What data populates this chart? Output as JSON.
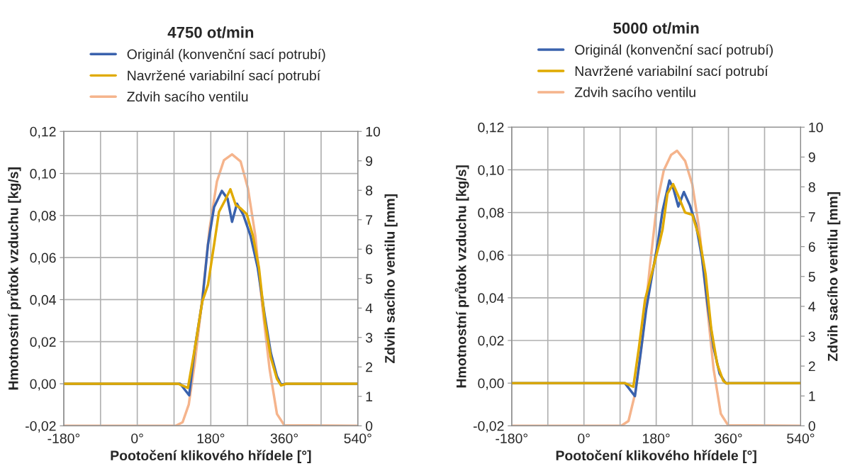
{
  "chart_data": [
    {
      "type": "line",
      "title": "4750 ot/min",
      "xlabel": "Pootočení klikového hřídele [°]",
      "ylabel": "Hmotnostní průtok vzduchu [kg/s]",
      "y2label": "Zdvih sacího ventilu [mm]",
      "xlim": [
        -180,
        540
      ],
      "xticks": [
        {
          "value": -180,
          "label": "-180°"
        },
        {
          "value": -90,
          "label": null
        },
        {
          "value": 0,
          "label": "0°"
        },
        {
          "value": 90,
          "label": null
        },
        {
          "value": 180,
          "label": "180°"
        },
        {
          "value": 270,
          "label": null
        },
        {
          "value": 360,
          "label": "360°"
        },
        {
          "value": 450,
          "label": null
        },
        {
          "value": 540,
          "label": "540°"
        }
      ],
      "ylim": [
        -0.02,
        0.12
      ],
      "yticks": [
        {
          "value": -0.02,
          "label": "-0,02"
        },
        {
          "value": 0,
          "label": "0,00"
        },
        {
          "value": 0.02,
          "label": "0,02"
        },
        {
          "value": 0.04,
          "label": "0,04"
        },
        {
          "value": 0.06,
          "label": "0,06"
        },
        {
          "value": 0.08,
          "label": "0,08"
        },
        {
          "value": 0.1,
          "label": "0,10"
        },
        {
          "value": 0.12,
          "label": "0,12"
        }
      ],
      "y2lim": [
        0,
        10
      ],
      "y2ticks": [
        0,
        1,
        2,
        3,
        4,
        5,
        6,
        7,
        8,
        9,
        10
      ],
      "grid": true,
      "legend": "top",
      "series": [
        {
          "name": "Originál (konvenční sací potrubí)",
          "color": "#3a62ad",
          "x": [
            -180,
            105,
            127,
            141,
            159,
            173,
            188,
            207,
            221,
            232,
            244,
            259,
            277,
            295,
            312,
            327,
            342,
            352,
            365,
            540
          ],
          "values": [
            0,
            0,
            -0.0055,
            0.017,
            0.039,
            0.066,
            0.084,
            0.0917,
            0.088,
            0.077,
            0.0856,
            0.0806,
            0.0705,
            0.055,
            0.0325,
            0.0146,
            0.0035,
            -0.0004,
            0,
            0
          ]
        },
        {
          "name": "Navržené variabilní sací potrubí",
          "color": "#e0aa00",
          "x": [
            -180,
            100,
            124,
            141,
            159,
            173,
            188,
            200,
            215,
            228,
            241,
            253,
            268,
            283,
            298,
            312,
            327,
            342,
            352,
            365,
            540
          ],
          "values": [
            0,
            0,
            -0.002,
            0.017,
            0.039,
            0.047,
            0.066,
            0.0817,
            0.0873,
            0.0925,
            0.085,
            0.0834,
            0.0806,
            0.0705,
            0.055,
            0.0303,
            0.0124,
            0.0023,
            -0.0008,
            0,
            0
          ]
        },
        {
          "name": "Zdvih sacího ventilu",
          "color": "#f5b48c",
          "axis": "y2",
          "x": [
            -180,
            94,
            111,
            126,
            141,
            159,
            177,
            195,
            212,
            232,
            253,
            271,
            289,
            306,
            324,
            342,
            360,
            540
          ],
          "values": [
            0,
            0,
            0.12,
            0.72,
            2.15,
            4.3,
            6.7,
            8.3,
            9.02,
            9.22,
            8.98,
            8.06,
            6.46,
            4.07,
            1.92,
            0.4,
            0.02,
            0
          ]
        }
      ]
    },
    {
      "type": "line",
      "title": "5000 ot/min",
      "xlabel": "Pootočení klikového hřídele [°]",
      "ylabel": "Hmotnostní průtok vzduchu [kg/s]",
      "y2label": "Zdvih sacího ventilu [mm]",
      "xlim": [
        -180,
        540
      ],
      "xticks": [
        {
          "value": -180,
          "label": "-180°"
        },
        {
          "value": -90,
          "label": null
        },
        {
          "value": 0,
          "label": "0°"
        },
        {
          "value": 90,
          "label": null
        },
        {
          "value": 180,
          "label": "180°"
        },
        {
          "value": 270,
          "label": null
        },
        {
          "value": 360,
          "label": "360°"
        },
        {
          "value": 450,
          "label": null
        },
        {
          "value": 540,
          "label": "540°"
        }
      ],
      "ylim": [
        -0.02,
        0.12
      ],
      "yticks": [
        {
          "value": -0.02,
          "label": "-0,02"
        },
        {
          "value": 0,
          "label": "0,00"
        },
        {
          "value": 0.02,
          "label": "0,02"
        },
        {
          "value": 0.04,
          "label": "0,04"
        },
        {
          "value": 0.06,
          "label": "0,06"
        },
        {
          "value": 0.08,
          "label": "0,08"
        },
        {
          "value": 0.1,
          "label": "0,10"
        },
        {
          "value": 0.12,
          "label": "0,12"
        }
      ],
      "y2lim": [
        0,
        10
      ],
      "y2ticks": [
        0,
        1,
        2,
        3,
        4,
        5,
        6,
        7,
        8,
        9,
        10
      ],
      "grid": true,
      "legend": "top",
      "series": [
        {
          "name": "Originál (konvenční sací potrubí)",
          "color": "#3a62ad",
          "x": [
            -180,
            102,
            127,
            140,
            155,
            170,
            184,
            196,
            213,
            223,
            235,
            249,
            264,
            279,
            294,
            308,
            323,
            338,
            353,
            540
          ],
          "values": [
            0,
            0,
            -0.0061,
            0.0122,
            0.0344,
            0.051,
            0.0656,
            0.081,
            0.095,
            0.0911,
            0.0828,
            0.0896,
            0.0833,
            0.0744,
            0.0589,
            0.0367,
            0.0167,
            0.0044,
            0,
            0
          ]
        },
        {
          "name": "Navržené variabilní sací potrubí",
          "color": "#e0aa00",
          "x": [
            -180,
            102,
            123,
            137,
            152,
            170,
            188,
            196,
            208,
            222,
            235,
            252,
            270,
            288,
            303,
            317,
            332,
            347,
            356,
            365,
            540
          ],
          "values": [
            0,
            0,
            -0.0017,
            0.0167,
            0.0389,
            0.0522,
            0.0656,
            0.0722,
            0.0889,
            0.0933,
            0.0878,
            0.08,
            0.0789,
            0.0678,
            0.0511,
            0.0256,
            0.0089,
            0.0011,
            -0.0002,
            0,
            0
          ]
        },
        {
          "name": "Zdvih sacího ventilu",
          "color": "#f5b48c",
          "axis": "y2",
          "x": [
            -180,
            93,
            111,
            128,
            146,
            164,
            182,
            199,
            217,
            232,
            252,
            270,
            288,
            306,
            323,
            341,
            359,
            540
          ],
          "values": [
            0,
            0,
            0.16,
            1.11,
            2.93,
            5.3,
            7.45,
            8.56,
            9.07,
            9.21,
            8.87,
            8.08,
            6.5,
            4.12,
            1.9,
            0.4,
            0.02,
            0
          ]
        }
      ]
    }
  ]
}
